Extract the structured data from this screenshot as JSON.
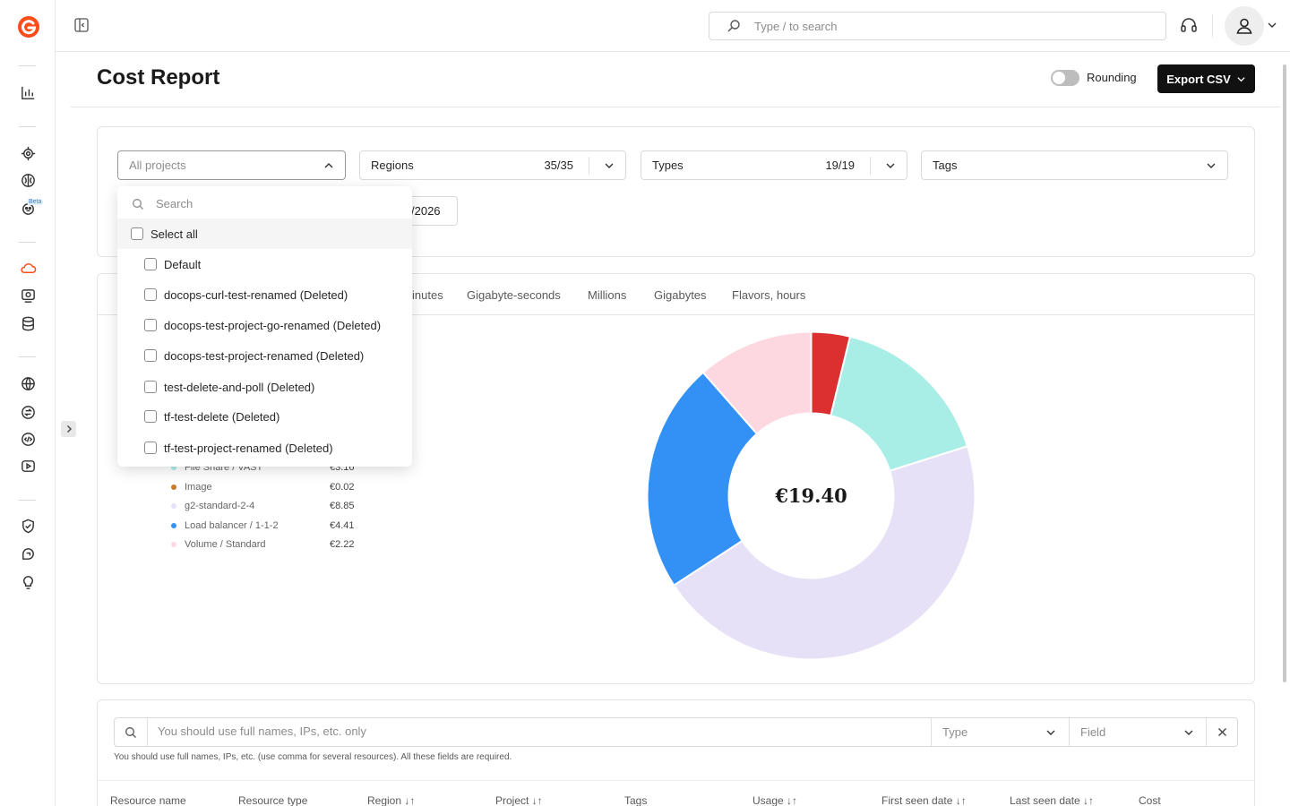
{
  "topbar": {
    "search_placeholder": "Type / to search"
  },
  "page": {
    "title": "Cost Report",
    "rounding_label": "Rounding",
    "rounding_on": false,
    "export_label": "Export CSV"
  },
  "filters": {
    "projects_placeholder": "All projects",
    "regions_label": "Regions",
    "regions_count": "35/35",
    "types_label": "Types",
    "types_count": "19/19",
    "tags_label": "Tags",
    "date_fragment": "/2026"
  },
  "projects_dropdown": {
    "search_placeholder": "Search",
    "select_all": "Select all",
    "items": [
      "Default",
      "docops-curl-test-renamed (Deleted)",
      "docops-test-project-go-renamed (Deleted)",
      "docops-test-project-renamed (Deleted)",
      "test-delete-and-poll (Deleted)",
      "tf-test-delete (Deleted)",
      "tf-test-project-renamed (Deleted)"
    ]
  },
  "unit_tabs": [
    "inutes",
    "Gigabyte-seconds",
    "Millions",
    "Gigabytes",
    "Flavors, hours"
  ],
  "legend": [
    {
      "label": "File Share / VAST",
      "value": "€3.16",
      "color": "#a8eee6"
    },
    {
      "label": "Image",
      "value": "€0.02",
      "color": "#c97a2a"
    },
    {
      "label": "g2-standard-2-4",
      "value": "€8.85",
      "color": "#e6e1f7"
    },
    {
      "label": "Load balancer / 1-1-2",
      "value": "€4.41",
      "color": "#3390f5"
    },
    {
      "label": "Volume / Standard",
      "value": "€2.22",
      "color": "#fdd8e0"
    }
  ],
  "chart_data": {
    "type": "pie",
    "total_label": "€19.40",
    "slices": [
      {
        "name": "",
        "value": 0.74,
        "color": "#dc3030"
      },
      {
        "name": "File Share / VAST",
        "value": 3.16,
        "color": "#a8eee6"
      },
      {
        "name": "g2-standard-2-4",
        "value": 8.85,
        "color": "#e6e1f7"
      },
      {
        "name": "Load balancer / 1-1-2",
        "value": 4.41,
        "color": "#3390f5"
      },
      {
        "name": "Volume / Standard",
        "value": 2.22,
        "color": "#fdd8e0"
      }
    ]
  },
  "resources": {
    "search_placeholder": "You should use full names, IPs, etc. only",
    "type_placeholder": "Type",
    "field_placeholder": "Field",
    "hint": "You should use full names, IPs, etc. (use comma for several resources). All these fields are required.",
    "columns": [
      "Resource name",
      "Resource type",
      "Region ↓↑",
      "Project ↓↑",
      "Tags",
      "Usage ↓↑",
      "First seen date ↓↑",
      "Last seen date ↓↑",
      "Cost"
    ]
  }
}
